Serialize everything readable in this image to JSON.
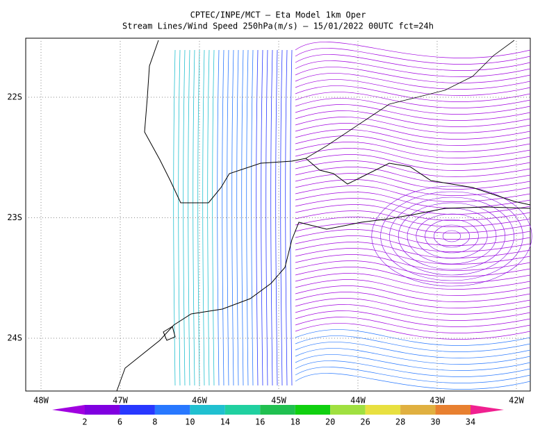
{
  "header": {
    "title": "CPTEC/INPE/MCT —  Eta Model 1km Oper",
    "subtitle": "Stream Lines/Wind Speed 250hPa(m/s) — 15/01/2022 00UTC fct=24h"
  },
  "map": {
    "lon_labels": [
      "48W",
      "47W",
      "46W",
      "45W",
      "44W",
      "43W",
      "42W"
    ],
    "lat_labels": [
      "22S",
      "23S",
      "24S"
    ]
  },
  "colorbar": {
    "labels": [
      2,
      6,
      8,
      10,
      14,
      16,
      18,
      20,
      26,
      28,
      30,
      34
    ],
    "colors": [
      "#a000e0",
      "#8000e0",
      "#2838ff",
      "#2878ff",
      "#20c0d0",
      "#20d0a0",
      "#20c050",
      "#10d010",
      "#a0e040",
      "#e8e040",
      "#e0b040",
      "#e88030",
      "#f04040",
      "#f02090"
    ]
  }
}
